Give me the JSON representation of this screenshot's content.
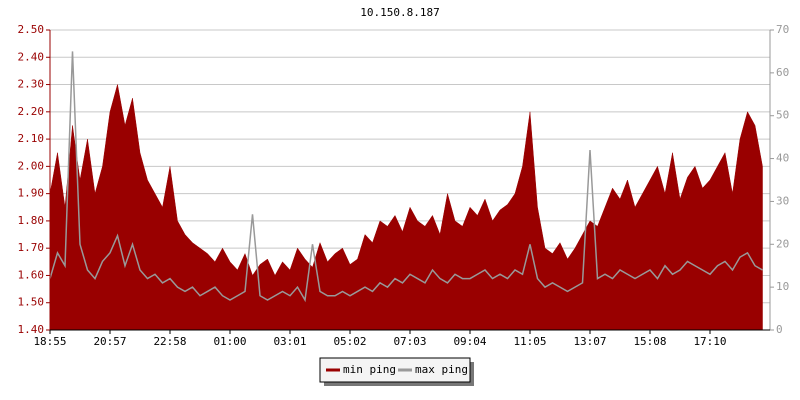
{
  "chart_data": {
    "type": "area",
    "title": "10.150.8.187",
    "categories": [
      "18:55",
      null,
      null,
      null,
      null,
      null,
      null,
      null,
      "20:57",
      null,
      null,
      null,
      null,
      null,
      null,
      null,
      "22:58",
      null,
      null,
      null,
      null,
      null,
      null,
      null,
      "01:00",
      null,
      null,
      null,
      null,
      null,
      null,
      null,
      "03:01",
      null,
      null,
      null,
      null,
      null,
      null,
      null,
      "05:02",
      null,
      null,
      null,
      null,
      null,
      null,
      null,
      "07:03",
      null,
      null,
      null,
      null,
      null,
      null,
      null,
      "09:04",
      null,
      null,
      null,
      null,
      null,
      null,
      null,
      "11:05",
      null,
      null,
      null,
      null,
      null,
      null,
      null,
      "13:07",
      null,
      null,
      null,
      null,
      null,
      null,
      null,
      "15:08",
      null,
      null,
      null,
      null,
      null,
      null,
      null,
      "17:10",
      null,
      null,
      null,
      null,
      null,
      null,
      null
    ],
    "series": [
      {
        "name": "min ping",
        "color": "#990000",
        "values": [
          1.9,
          2.05,
          1.85,
          2.15,
          1.95,
          2.1,
          1.9,
          2.0,
          2.2,
          2.3,
          2.15,
          2.25,
          2.05,
          1.95,
          1.9,
          1.85,
          2.0,
          1.8,
          1.75,
          1.72,
          1.7,
          1.68,
          1.65,
          1.7,
          1.65,
          1.62,
          1.68,
          1.6,
          1.64,
          1.66,
          1.6,
          1.65,
          1.62,
          1.7,
          1.66,
          1.63,
          1.72,
          1.65,
          1.68,
          1.7,
          1.64,
          1.66,
          1.75,
          1.72,
          1.8,
          1.78,
          1.82,
          1.76,
          1.85,
          1.8,
          1.78,
          1.82,
          1.75,
          1.9,
          1.8,
          1.78,
          1.85,
          1.82,
          1.88,
          1.8,
          1.84,
          1.86,
          1.9,
          2.0,
          2.2,
          1.85,
          1.7,
          1.68,
          1.72,
          1.66,
          1.7,
          1.75,
          1.8,
          1.78,
          1.85,
          1.92,
          1.88,
          1.95,
          1.85,
          1.9,
          1.95,
          2.0,
          1.9,
          2.05,
          1.88,
          1.96,
          2.0,
          1.92,
          1.95,
          2.0,
          2.05,
          1.9,
          2.1,
          2.2,
          2.15,
          2.0
        ]
      },
      {
        "name": "max ping",
        "color": "#999999",
        "axis": "y2",
        "values": [
          12,
          18,
          15,
          65,
          20,
          14,
          12,
          16,
          18,
          22,
          15,
          20,
          14,
          12,
          13,
          11,
          12,
          10,
          9,
          10,
          8,
          9,
          10,
          8,
          7,
          8,
          9,
          27,
          8,
          7,
          8,
          9,
          8,
          10,
          7,
          20,
          9,
          8,
          8,
          9,
          8,
          9,
          10,
          9,
          11,
          10,
          12,
          11,
          13,
          12,
          11,
          14,
          12,
          11,
          13,
          12,
          12,
          13,
          14,
          12,
          13,
          12,
          14,
          13,
          20,
          12,
          10,
          11,
          10,
          9,
          10,
          11,
          42,
          12,
          13,
          12,
          14,
          13,
          12,
          13,
          14,
          12,
          15,
          13,
          14,
          16,
          15,
          14,
          13,
          15,
          16,
          14,
          17,
          18,
          15,
          14
        ]
      }
    ],
    "ylim": [
      1.4,
      2.5
    ],
    "yticks": [
      {
        "value": 1.4,
        "label": "1.40"
      },
      {
        "value": 1.5,
        "label": "1.50"
      },
      {
        "value": 1.6,
        "label": "1.60"
      },
      {
        "value": 1.7,
        "label": "1.70"
      },
      {
        "value": 1.8,
        "label": "1.80"
      },
      {
        "value": 1.9,
        "label": "1.90"
      },
      {
        "value": 2.0,
        "label": "2.00"
      },
      {
        "value": 2.1,
        "label": "2.10"
      },
      {
        "value": 2.2,
        "label": "2.20"
      },
      {
        "value": 2.3,
        "label": "2.30"
      },
      {
        "value": 2.4,
        "label": "2.40"
      },
      {
        "value": 2.5,
        "label": "2.50"
      }
    ],
    "y2lim": [
      0,
      70
    ],
    "y2ticks": [
      0,
      10,
      20,
      30,
      40,
      50,
      60,
      70
    ],
    "grid": true,
    "legend": "bottom"
  }
}
